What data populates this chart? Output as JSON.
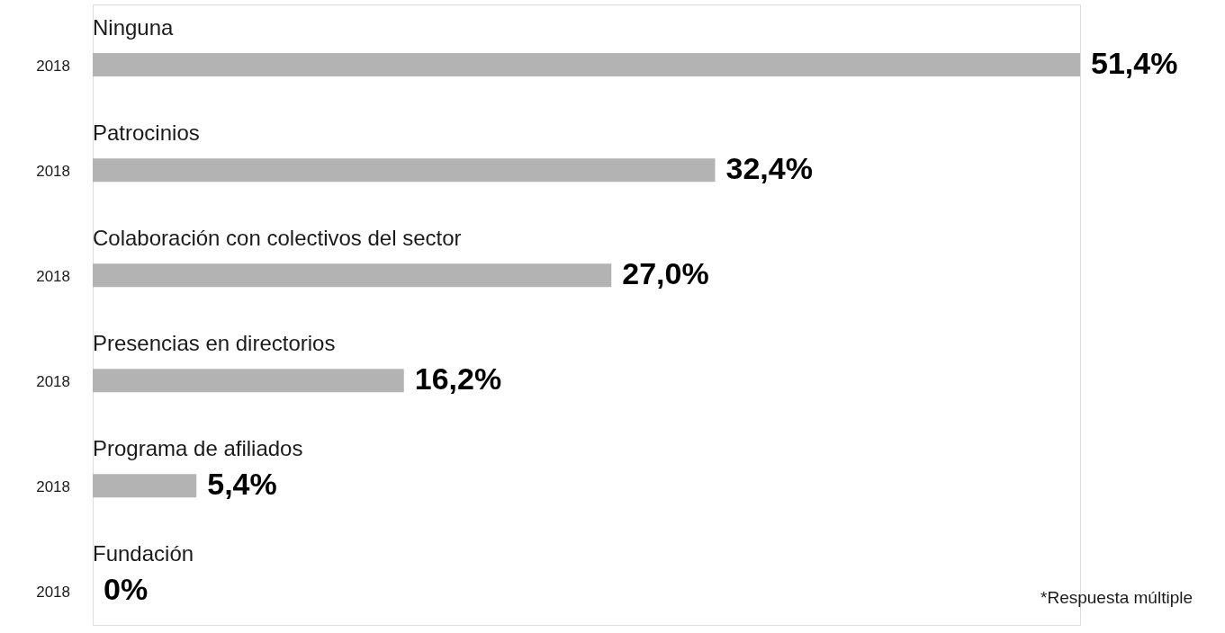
{
  "chart_data": {
    "type": "bar",
    "orientation": "horizontal",
    "categories": [
      "Ninguna",
      "Patrocinios",
      "Colaboración con colectivos del sector",
      "Presencias en directorios",
      "Programa de afiliados",
      "Fundación"
    ],
    "series": [
      {
        "name": "2018",
        "color": "#b3b3b3",
        "values": [
          51.4,
          32.4,
          27.0,
          16.2,
          5.4,
          0
        ],
        "value_labels": [
          "51,4%",
          "32,4%",
          "27,0%",
          "16,2%",
          "5,4%",
          "0%"
        ]
      }
    ],
    "annotations": [
      "*Respuesta múltiple"
    ]
  }
}
